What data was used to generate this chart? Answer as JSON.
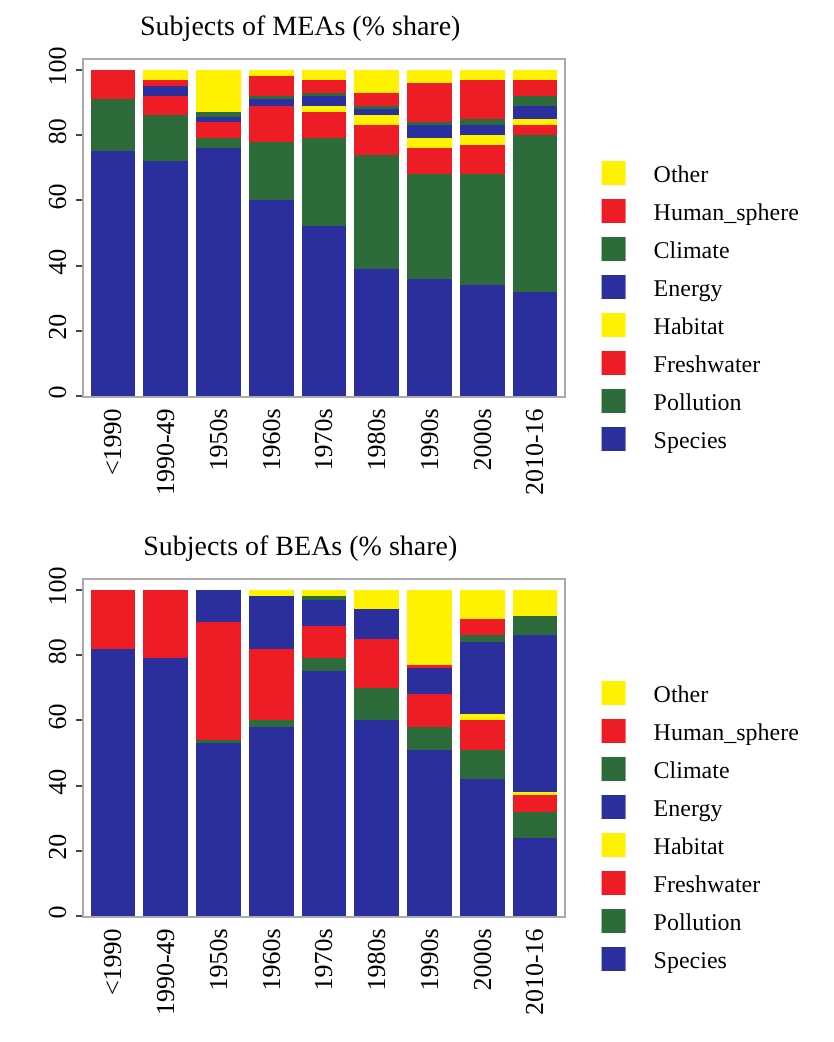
{
  "chart_data": [
    {
      "type": "bar",
      "title": "Subjects of MEAs (% share)",
      "stacked": true,
      "legend": "right",
      "grid": false,
      "ylim": [
        0,
        103
      ],
      "yticks": [
        0,
        20,
        40,
        60,
        80,
        100
      ],
      "categories": [
        "<1990",
        "1990-49",
        "1950s",
        "1960s",
        "1970s",
        "1980s",
        "1990s",
        "2000s",
        "2010-16"
      ],
      "series": [
        {
          "name": "Species",
          "color": "#2b2f9e",
          "values": [
            75,
            72,
            76,
            60,
            52,
            39,
            36,
            34,
            32
          ]
        },
        {
          "name": "Pollution",
          "color": "#2e6b3a",
          "values": [
            16,
            14,
            3,
            18,
            27,
            35,
            32,
            34,
            48
          ]
        },
        {
          "name": "Freshwater",
          "color": "#ee1c25",
          "values": [
            9,
            6,
            5,
            11,
            8,
            9,
            8,
            9,
            3
          ]
        },
        {
          "name": "Habitat",
          "color": "#fff200",
          "values": [
            0,
            0,
            0,
            0,
            2,
            3,
            3,
            3,
            2
          ]
        },
        {
          "name": "Energy",
          "color": "#2b2f9e",
          "values": [
            0,
            3,
            1.5,
            2,
            3,
            2,
            4,
            3,
            4
          ]
        },
        {
          "name": "Climate",
          "color": "#2e6b3a",
          "values": [
            0,
            0,
            1.5,
            1,
            1,
            1,
            1,
            2,
            3
          ]
        },
        {
          "name": "Human_sphere",
          "color": "#ee1c25",
          "values": [
            0,
            2,
            0,
            6,
            4,
            4,
            12,
            12,
            5
          ]
        },
        {
          "name": "Other",
          "color": "#fff200",
          "values": [
            0,
            3,
            13,
            2,
            3,
            7,
            4,
            3,
            3
          ]
        }
      ]
    },
    {
      "type": "bar",
      "title": "Subjects of BEAs (% share)",
      "stacked": true,
      "legend": "right",
      "grid": false,
      "ylim": [
        0,
        103
      ],
      "yticks": [
        0,
        20,
        40,
        60,
        80,
        100
      ],
      "categories": [
        "<1990",
        "1990-49",
        "1950s",
        "1960s",
        "1970s",
        "1980s",
        "1990s",
        "2000s",
        "2010-16"
      ],
      "series": [
        {
          "name": "Species",
          "color": "#2b2f9e",
          "values": [
            82,
            79,
            53,
            58,
            75,
            60,
            51,
            42,
            24
          ]
        },
        {
          "name": "Pollution",
          "color": "#2e6b3a",
          "values": [
            0,
            0,
            1,
            2,
            4,
            10,
            7,
            9,
            8
          ]
        },
        {
          "name": "Freshwater",
          "color": "#ee1c25",
          "values": [
            18,
            20,
            36,
            22,
            10,
            15,
            10,
            9,
            5
          ]
        },
        {
          "name": "Habitat",
          "color": "#fff200",
          "values": [
            0,
            0,
            0,
            0,
            0,
            0,
            0,
            2,
            1
          ]
        },
        {
          "name": "Energy",
          "color": "#2b2f9e",
          "values": [
            0,
            0,
            10,
            16,
            8,
            9,
            8,
            22,
            48
          ]
        },
        {
          "name": "Climate",
          "color": "#2e6b3a",
          "values": [
            0,
            0,
            0,
            0,
            1,
            0,
            0,
            2,
            6
          ]
        },
        {
          "name": "Human_sphere",
          "color": "#ee1c25",
          "values": [
            0,
            1,
            0,
            0,
            0,
            0,
            1,
            5,
            0
          ]
        },
        {
          "name": "Other",
          "color": "#fff200",
          "values": [
            0,
            0,
            0,
            2,
            2,
            6,
            23,
            9,
            8
          ]
        }
      ]
    }
  ]
}
